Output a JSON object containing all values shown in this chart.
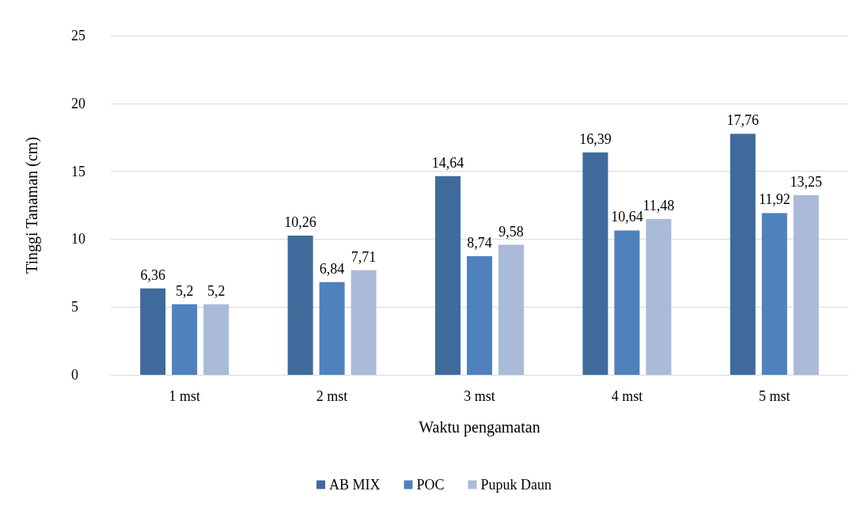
{
  "chart_data": {
    "type": "bar",
    "xlabel": "Waktu pengamatan",
    "ylabel": "Tinggi Tanaman (cm)",
    "categories": [
      "1 mst",
      "2 mst",
      "3 mst",
      "4 mst",
      "5 mst"
    ],
    "series": [
      {
        "name": "AB MIX",
        "color": "#3f6a9c",
        "values": [
          6.36,
          10.26,
          14.64,
          16.39,
          17.76
        ],
        "value_labels": [
          "6,36",
          "10,26",
          "14,64",
          "16,39",
          "17,76"
        ]
      },
      {
        "name": "POC",
        "color": "#4f81bd",
        "values": [
          5.2,
          6.84,
          8.74,
          10.64,
          11.92
        ],
        "value_labels": [
          "5,2",
          "6,84",
          "8,74",
          "10,64",
          "11,92"
        ]
      },
      {
        "name": "Pupuk Daun",
        "color": "#aabad9",
        "values": [
          5.2,
          7.71,
          9.58,
          11.48,
          13.25
        ],
        "value_labels": [
          "5,2",
          "7,71",
          "9,58",
          "11,48",
          "13,25"
        ]
      }
    ],
    "ylim": [
      0,
      25
    ],
    "yticks": [
      0,
      5,
      10,
      15,
      20,
      25
    ],
    "grid": "y",
    "legend": "bottom"
  }
}
